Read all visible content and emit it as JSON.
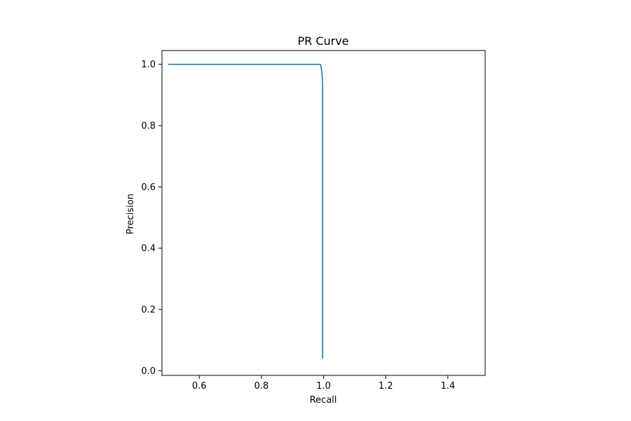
{
  "chart_data": {
    "type": "line",
    "title": "PR Curve",
    "xlabel": "Recall",
    "ylabel": "Precision",
    "xlim": [
      0.48,
      1.52
    ],
    "ylim": [
      -0.015,
      1.045
    ],
    "xticks": [
      "0.6",
      "0.8",
      "1.0",
      "1.2",
      "1.4"
    ],
    "yticks": [
      "0.0",
      "0.2",
      "0.4",
      "0.6",
      "0.8",
      "1.0"
    ],
    "grid": false,
    "line_color": "#1f77b4",
    "series": [
      {
        "x": [
          0.5,
          0.6,
          0.7,
          0.8,
          0.9,
          0.95,
          0.99,
          0.992,
          0.994,
          0.995,
          0.996,
          0.997,
          0.997,
          0.997,
          0.997,
          0.997,
          0.997
        ],
        "y": [
          1.0,
          1.0,
          1.0,
          1.0,
          1.0,
          1.0,
          1.0,
          0.99,
          0.98,
          0.97,
          0.95,
          0.92,
          0.88,
          0.8,
          0.6,
          0.3,
          0.04
        ]
      }
    ]
  }
}
